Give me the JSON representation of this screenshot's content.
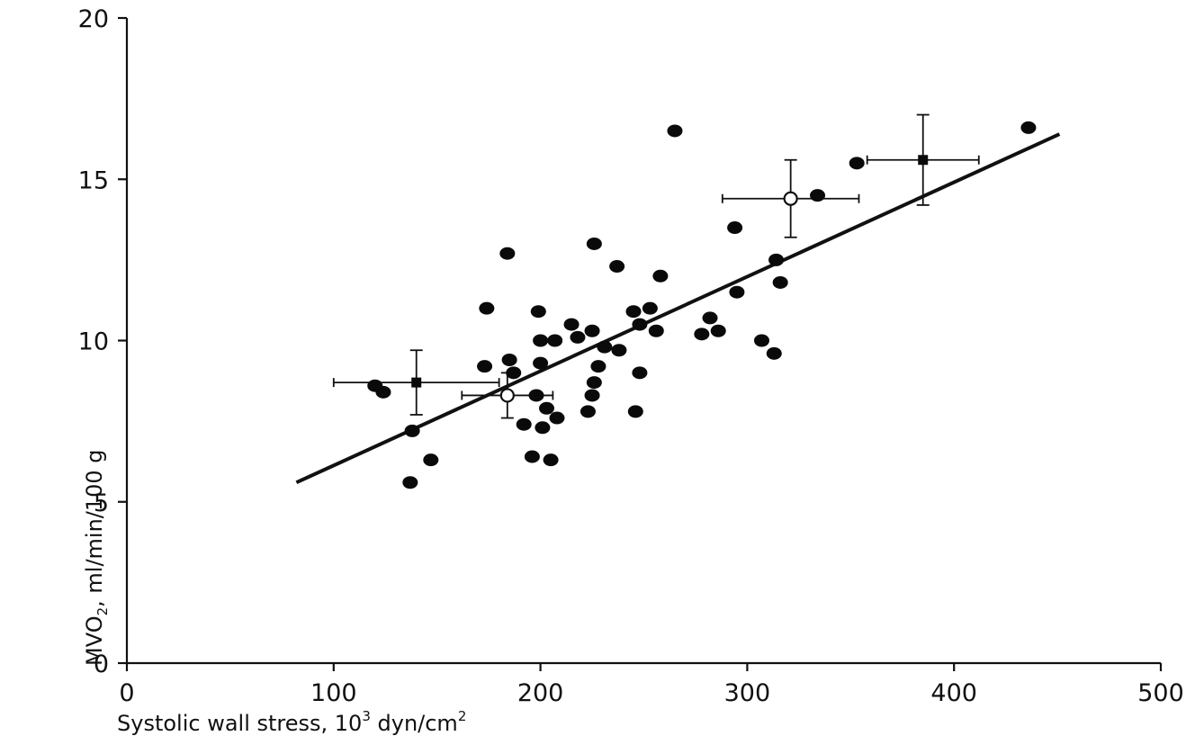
{
  "chart_data": {
    "type": "scatter",
    "title": "",
    "xlabel": "Systolic wall stress, 10³ dyn/cm²",
    "xlabel_main": "Systolic wall stress, 10",
    "xlabel_sup": "3",
    "xlabel_mid": " dyn/cm",
    "xlabel_sup2": "2",
    "ylabel": "MVO₂, ml/min/100 g",
    "ylabel_text": "MVO",
    "ylabel_sub": "2",
    "ylabel_rest": ", ml/min/100 g",
    "xlim": [
      0,
      500
    ],
    "ylim": [
      0,
      20
    ],
    "xticks": [
      0,
      100,
      200,
      300,
      400,
      500
    ],
    "yticks": [
      0,
      5,
      10,
      15,
      20
    ],
    "grid": false,
    "points": [
      {
        "x": 120,
        "y": 8.6
      },
      {
        "x": 124,
        "y": 8.4
      },
      {
        "x": 138,
        "y": 7.2
      },
      {
        "x": 137,
        "y": 5.6
      },
      {
        "x": 147,
        "y": 6.3
      },
      {
        "x": 173,
        "y": 9.2
      },
      {
        "x": 174,
        "y": 11.0
      },
      {
        "x": 184,
        "y": 12.7
      },
      {
        "x": 185,
        "y": 9.4
      },
      {
        "x": 187,
        "y": 9.0
      },
      {
        "x": 192,
        "y": 7.4
      },
      {
        "x": 196,
        "y": 6.4
      },
      {
        "x": 198,
        "y": 8.3
      },
      {
        "x": 199,
        "y": 10.9
      },
      {
        "x": 200,
        "y": 10.0
      },
      {
        "x": 200,
        "y": 9.3
      },
      {
        "x": 201,
        "y": 7.3
      },
      {
        "x": 203,
        "y": 7.9
      },
      {
        "x": 205,
        "y": 6.3
      },
      {
        "x": 207,
        "y": 10.0
      },
      {
        "x": 208,
        "y": 7.6
      },
      {
        "x": 215,
        "y": 10.5
      },
      {
        "x": 218,
        "y": 10.1
      },
      {
        "x": 223,
        "y": 7.8
      },
      {
        "x": 225,
        "y": 10.3
      },
      {
        "x": 225,
        "y": 8.3
      },
      {
        "x": 226,
        "y": 13.0
      },
      {
        "x": 226,
        "y": 8.7
      },
      {
        "x": 228,
        "y": 9.2
      },
      {
        "x": 231,
        "y": 9.8
      },
      {
        "x": 237,
        "y": 12.3
      },
      {
        "x": 238,
        "y": 9.7
      },
      {
        "x": 245,
        "y": 10.9
      },
      {
        "x": 246,
        "y": 7.8
      },
      {
        "x": 248,
        "y": 10.5
      },
      {
        "x": 248,
        "y": 9.0
      },
      {
        "x": 253,
        "y": 11.0
      },
      {
        "x": 256,
        "y": 10.3
      },
      {
        "x": 258,
        "y": 12.0
      },
      {
        "x": 265,
        "y": 16.5
      },
      {
        "x": 278,
        "y": 10.2
      },
      {
        "x": 282,
        "y": 10.7
      },
      {
        "x": 286,
        "y": 10.3
      },
      {
        "x": 294,
        "y": 13.5
      },
      {
        "x": 295,
        "y": 11.5
      },
      {
        "x": 307,
        "y": 10.0
      },
      {
        "x": 313,
        "y": 9.6
      },
      {
        "x": 314,
        "y": 12.5
      },
      {
        "x": 316,
        "y": 11.8
      },
      {
        "x": 334,
        "y": 14.5
      },
      {
        "x": 353,
        "y": 15.5
      },
      {
        "x": 436,
        "y": 16.6
      }
    ],
    "mean_points": [
      {
        "x": 140,
        "y": 8.7,
        "x_err": 40,
        "y_err": 1.0,
        "filled": true
      },
      {
        "x": 184,
        "y": 8.3,
        "x_err": 22,
        "y_err": 0.7,
        "filled": false
      },
      {
        "x": 321,
        "y": 14.4,
        "x_err": 33,
        "y_err": 1.2,
        "filled": false
      },
      {
        "x": 385,
        "y": 15.6,
        "x_err": 27,
        "y_err": 1.4,
        "filled": true
      }
    ],
    "regression_line": {
      "x": [
        82,
        451
      ],
      "y": [
        5.6,
        16.4
      ]
    }
  }
}
